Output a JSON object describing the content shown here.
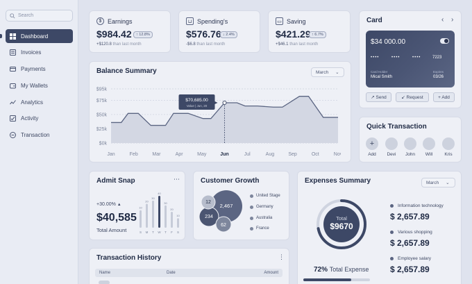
{
  "sidebar": {
    "search_placeholder": "Search",
    "items": [
      {
        "label": "Dashboard",
        "icon": "grid-icon",
        "active": true
      },
      {
        "label": "Invoices",
        "icon": "invoice-icon"
      },
      {
        "label": "Payments",
        "icon": "payment-icon"
      },
      {
        "label": "My Wallets",
        "icon": "wallet-icon"
      },
      {
        "label": "Analytics",
        "icon": "analytics-icon"
      },
      {
        "label": "Activity",
        "icon": "activity-icon"
      },
      {
        "label": "Transaction",
        "icon": "transaction-icon"
      }
    ]
  },
  "stats": [
    {
      "title": "Earnings",
      "icon": "dollar-icon",
      "value": "$984.42",
      "badge": "↑ 12.8%",
      "delta": "+$120.8",
      "note": "than last month"
    },
    {
      "title": "Spending's",
      "icon": "cart-icon",
      "value": "$576.76",
      "badge": "↓ 2.4%",
      "delta": "-$6.8",
      "note": "than last month"
    },
    {
      "title": "Saving",
      "icon": "piggy-icon",
      "value": "$421.29",
      "badge": "↑ 6.7%",
      "delta": "+$46.1",
      "note": "than last month"
    }
  ],
  "balance": {
    "title": "Balance Summary",
    "period": "March",
    "tooltip_value": "$70,685.00",
    "tooltip_label": "Value | Jun, 20"
  },
  "chart_data": {
    "type": "line",
    "title": "Balance Summary",
    "categories": [
      "Jan",
      "Feb",
      "Mar",
      "Apr",
      "May",
      "Jun",
      "Jul",
      "Aug",
      "Sep",
      "Oct",
      "Nov"
    ],
    "y_ticks": [
      "$0k",
      "$25k",
      "$50k",
      "$75k",
      "$95k"
    ],
    "ylim": [
      0,
      95000
    ],
    "x": [
      0,
      0.45,
      0.75,
      1.2,
      1.75,
      2.4,
      2.75,
      3.4,
      4.05,
      4.4,
      5,
      5.55,
      5.9,
      6.45,
      7.15,
      7.55,
      8.3,
      8.7,
      9.35,
      9.8,
      10
    ],
    "values": [
      36000,
      36000,
      52000,
      52000,
      31000,
      31000,
      52000,
      52000,
      43000,
      43000,
      70685,
      70685,
      65000,
      65000,
      63000,
      63000,
      82000,
      82000,
      45000,
      45000,
      45000
    ],
    "highlight": {
      "category": "Jun",
      "value": 70685
    },
    "grid": true,
    "grid_style": "dashed"
  },
  "card": {
    "title": "Card",
    "balance": "$34 000.00",
    "masked": "••••",
    "last4": "7223",
    "holder_label": "Card Holder",
    "holder": "Mical Smith",
    "expiry_label": "Expires",
    "expiry": "03/26",
    "buttons": [
      "↗ Send",
      "↙ Request",
      "+ Add"
    ]
  },
  "quick": {
    "title": "Quick Transaction",
    "people": [
      {
        "name": "Add",
        "initial": "+"
      },
      {
        "name": "Devi",
        "initial": ""
      },
      {
        "name": "John",
        "initial": ""
      },
      {
        "name": "Will",
        "initial": ""
      },
      {
        "name": "Kris",
        "initial": ""
      }
    ]
  },
  "admit": {
    "title": "Admit Snap",
    "growth": "+30.00%",
    "value": "$40,585",
    "label": "Total Amount",
    "bar_labels": [
      "S",
      "M",
      "T",
      "W",
      "T",
      "F",
      "S"
    ],
    "bar_numbers": [
      "10",
      "20",
      "30",
      "40",
      "30",
      "20",
      "10"
    ],
    "bar_values": [
      0.55,
      0.75,
      0.85,
      1.0,
      0.7,
      0.5,
      0.3
    ],
    "highlight_index": 3
  },
  "growth": {
    "title": "Customer Growth",
    "bubbles": [
      "12",
      "2,467",
      "234",
      "62"
    ],
    "legend": [
      "United Stage",
      "Germany",
      "Australia",
      "France"
    ]
  },
  "expenses": {
    "title": "Expenses Summary",
    "period": "March",
    "total_label": "Total",
    "total_value": "$9670",
    "percent": "72%",
    "percent_label": "Total Expense",
    "percent_fraction": 0.72,
    "items": [
      {
        "label": "Information technology",
        "amount": "$ 2,657.89"
      },
      {
        "label": "Various shopping",
        "amount": "$ 2,657.89"
      },
      {
        "label": "Employee salary",
        "amount": "$ 2,657.89"
      }
    ]
  },
  "history": {
    "title": "Transaction History",
    "columns": [
      "Name",
      "Date",
      "Amount"
    ]
  },
  "colors": {
    "accent": "#3d4866",
    "background": "#dfe3ee",
    "card": "#eef0f6"
  }
}
